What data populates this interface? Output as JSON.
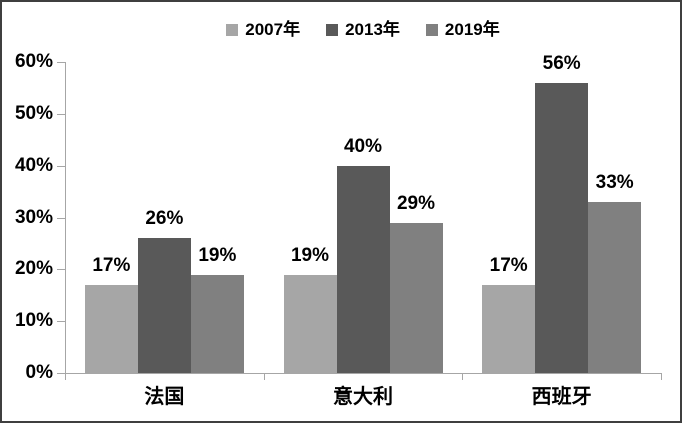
{
  "chart_data": {
    "type": "bar",
    "categories": [
      "法国",
      "意大利",
      "西班牙"
    ],
    "series": [
      {
        "name": "2007年",
        "color": "#a6a6a6",
        "values": [
          17,
          19,
          17
        ]
      },
      {
        "name": "2013年",
        "color": "#595959",
        "values": [
          26,
          40,
          56
        ]
      },
      {
        "name": "2019年",
        "color": "#808080",
        "values": [
          19,
          29,
          33
        ]
      }
    ],
    "data_labels": [
      [
        "17%",
        "19%",
        "17%"
      ],
      [
        "26%",
        "40%",
        "56%"
      ],
      [
        "19%",
        "29%",
        "33%"
      ]
    ],
    "title": "",
    "xlabel": "",
    "ylabel": "",
    "ylim": [
      0,
      60
    ],
    "ytick_step": 10,
    "ytick_labels": [
      "0%",
      "10%",
      "20%",
      "30%",
      "40%",
      "50%",
      "60%"
    ],
    "legend_position": "top-center",
    "grid": false,
    "axis_color": "#a6a6a6",
    "text_color": "#000000",
    "background_color": "#ffffff",
    "border_color": "#3f3f3f"
  }
}
